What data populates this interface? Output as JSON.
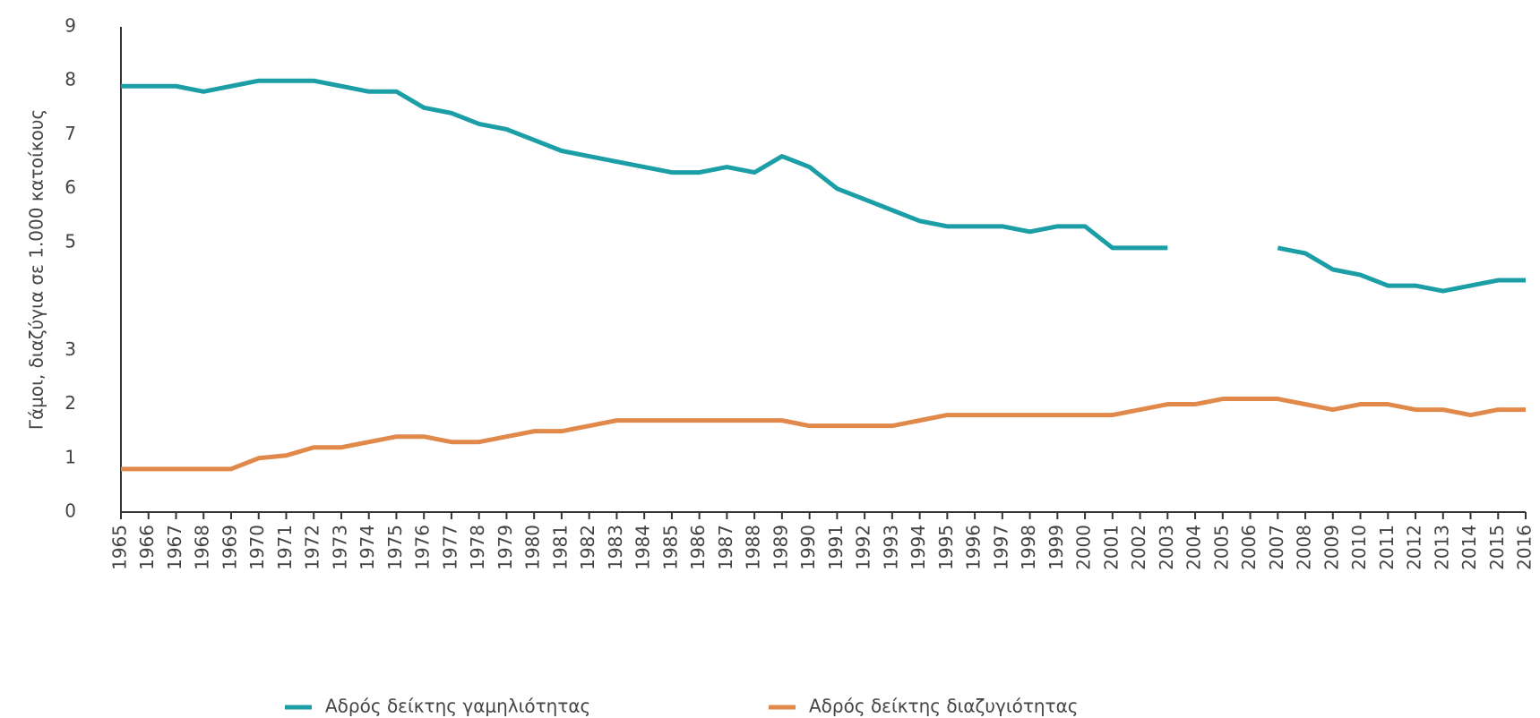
{
  "chart_data": {
    "type": "line",
    "y_label": "Γάμοι, διαζύγια σε 1.000 κατοίκους",
    "categories": [
      "1965",
      "1966",
      "1967",
      "1968",
      "1969",
      "1970",
      "1971",
      "1972",
      "1973",
      "1974",
      "1975",
      "1976",
      "1977",
      "1978",
      "1979",
      "1980",
      "1981",
      "1982",
      "1983",
      "1984",
      "1985",
      "1986",
      "1987",
      "1988",
      "1989",
      "1990",
      "1991",
      "1992",
      "1993",
      "1994",
      "1995",
      "1996",
      "1997",
      "1998",
      "1999",
      "2000",
      "2001",
      "2002",
      "2003",
      "2004",
      "2005",
      "2006",
      "2007",
      "2008",
      "2009",
      "2010",
      "2011",
      "2012",
      "2013",
      "2014",
      "2015",
      "2016"
    ],
    "series": [
      {
        "name": "Αδρός δείκτης γαμηλιότητας",
        "color": "#1b9ea6",
        "values": [
          7.9,
          7.9,
          7.9,
          7.8,
          7.9,
          8.0,
          8.0,
          8.0,
          7.9,
          7.8,
          7.8,
          7.5,
          7.4,
          7.2,
          7.1,
          6.9,
          6.7,
          6.6,
          6.5,
          6.4,
          6.3,
          6.3,
          6.4,
          6.3,
          6.6,
          6.4,
          6.0,
          5.8,
          5.6,
          5.4,
          5.3,
          5.3,
          5.3,
          5.2,
          5.3,
          5.3,
          4.9,
          4.9,
          4.9,
          null,
          null,
          null,
          4.9,
          4.8,
          4.5,
          4.4,
          4.2,
          4.2,
          4.1,
          4.2,
          4.3,
          4.3
        ]
      },
      {
        "name": "Αδρός δείκτης διαζυγιότητας",
        "color": "#e0894a",
        "values": [
          0.8,
          0.8,
          0.8,
          0.8,
          0.8,
          1.0,
          1.05,
          1.2,
          1.2,
          1.3,
          1.4,
          1.4,
          1.3,
          1.3,
          1.4,
          1.5,
          1.5,
          1.6,
          1.7,
          1.7,
          1.7,
          1.7,
          1.7,
          1.7,
          1.7,
          1.6,
          1.6,
          1.6,
          1.6,
          1.7,
          1.8,
          1.8,
          1.8,
          1.8,
          1.8,
          1.8,
          1.8,
          1.9,
          2.0,
          2.0,
          2.1,
          2.1,
          2.1,
          2.0,
          1.9,
          2.0,
          2.0,
          1.9,
          1.9,
          1.8,
          1.9,
          1.9
        ]
      }
    ],
    "ylim": [
      0,
      9
    ],
    "yticks": [
      0,
      1,
      2,
      3,
      5,
      6,
      7,
      8,
      9
    ],
    "grid": false,
    "legend": "bottom"
  }
}
